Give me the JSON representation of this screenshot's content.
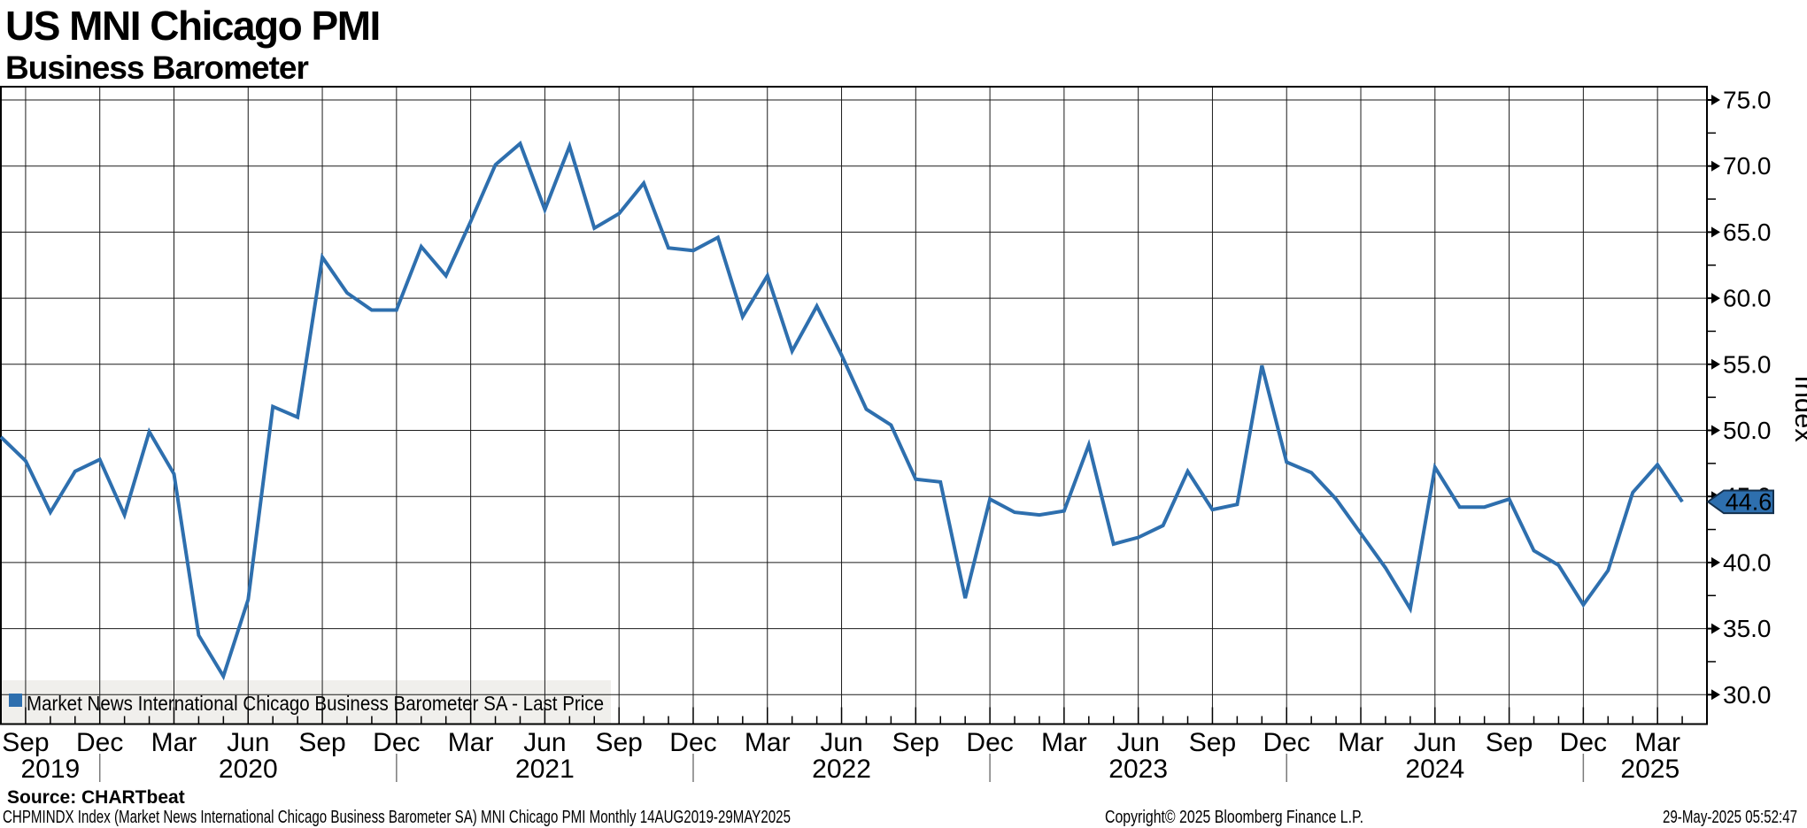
{
  "header": {
    "title": "US MNI Chicago PMI",
    "subtitle": "Business Barometer"
  },
  "chart_data": {
    "type": "line",
    "title": "US MNI Chicago PMI",
    "subtitle": "Business Barometer",
    "series_name": "Market News International Chicago Business Barometer SA - Last Price",
    "line_color": "#2e6fae",
    "grid": true,
    "legend_position": "bottom-left",
    "ylabel": "Index",
    "ylim": [
      28,
      76
    ],
    "x": [
      "Aug 2019",
      "Sep 2019",
      "Oct 2019",
      "Nov 2019",
      "Dec 2019",
      "Jan 2020",
      "Feb 2020",
      "Mar 2020",
      "Apr 2020",
      "May 2020",
      "Jun 2020",
      "Jul 2020",
      "Aug 2020",
      "Sep 2020",
      "Oct 2020",
      "Nov 2020",
      "Dec 2020",
      "Jan 2021",
      "Feb 2021",
      "Mar 2021",
      "Apr 2021",
      "May 2021",
      "Jun 2021",
      "Jul 2021",
      "Aug 2021",
      "Sep 2021",
      "Oct 2021",
      "Nov 2021",
      "Dec 2021",
      "Jan 2022",
      "Feb 2022",
      "Mar 2022",
      "Apr 2022",
      "May 2022",
      "Jun 2022",
      "Jul 2022",
      "Aug 2022",
      "Sep 2022",
      "Oct 2022",
      "Nov 2022",
      "Dec 2022",
      "Jan 2023",
      "Feb 2023",
      "Mar 2023",
      "Apr 2023",
      "May 2023",
      "Jun 2023",
      "Jul 2023",
      "Aug 2023",
      "Sep 2023",
      "Oct 2023",
      "Nov 2023",
      "Dec 2023",
      "Jan 2024",
      "Feb 2024",
      "Mar 2024",
      "Apr 2024",
      "May 2024",
      "Jun 2024",
      "Jul 2024",
      "Aug 2024",
      "Sep 2024",
      "Oct 2024",
      "Nov 2024",
      "Dec 2024",
      "Jan 2025",
      "Feb 2025",
      "Mar 2025",
      "Apr 2025"
    ],
    "values": [
      49.5,
      47.7,
      43.8,
      46.9,
      47.8,
      43.6,
      49.9,
      46.7,
      34.5,
      31.4,
      37.2,
      51.8,
      51.0,
      63.1,
      60.4,
      59.1,
      59.1,
      63.9,
      61.7,
      65.8,
      70.1,
      71.7,
      66.7,
      71.5,
      65.3,
      66.4,
      68.7,
      63.8,
      63.6,
      64.6,
      58.6,
      61.7,
      56.0,
      59.4,
      55.7,
      51.6,
      50.4,
      46.3,
      46.1,
      37.3,
      44.8,
      43.8,
      43.6,
      43.9,
      48.9,
      41.4,
      41.9,
      42.8,
      46.9,
      44.0,
      44.4,
      54.9,
      47.6,
      46.8,
      44.8,
      42.2,
      39.6,
      36.5,
      47.2,
      44.2,
      44.2,
      44.8,
      40.9,
      39.8,
      36.8,
      39.4,
      45.3,
      47.4,
      44.6
    ],
    "last_price": 44.6,
    "last_price_label": "44.6",
    "y_major_ticks": [
      75.0,
      70.0,
      65.0,
      60.0,
      55.0,
      50.0,
      45.0,
      40.0,
      35.0,
      30.0
    ],
    "y_major_tick_labels": [
      "75.0",
      "70.0",
      "65.0",
      "60.0",
      "55.0",
      "50.0",
      "45.0",
      "40.0",
      "35.0",
      "30.0"
    ],
    "y_minor_ticks": [
      72.5,
      67.5,
      62.5,
      57.5,
      52.5,
      47.5,
      42.5,
      37.5,
      32.5
    ],
    "x_quarter_ticks": [
      {
        "i": 1,
        "label": "Sep"
      },
      {
        "i": 4,
        "label": "Dec"
      },
      {
        "i": 7,
        "label": "Mar"
      },
      {
        "i": 10,
        "label": "Jun"
      },
      {
        "i": 13,
        "label": "Sep"
      },
      {
        "i": 16,
        "label": "Dec"
      },
      {
        "i": 19,
        "label": "Mar"
      },
      {
        "i": 22,
        "label": "Jun"
      },
      {
        "i": 25,
        "label": "Sep"
      },
      {
        "i": 28,
        "label": "Dec"
      },
      {
        "i": 31,
        "label": "Mar"
      },
      {
        "i": 34,
        "label": "Jun"
      },
      {
        "i": 37,
        "label": "Sep"
      },
      {
        "i": 40,
        "label": "Dec"
      },
      {
        "i": 43,
        "label": "Mar"
      },
      {
        "i": 46,
        "label": "Jun"
      },
      {
        "i": 49,
        "label": "Sep"
      },
      {
        "i": 52,
        "label": "Dec"
      },
      {
        "i": 55,
        "label": "Mar"
      },
      {
        "i": 58,
        "label": "Jun"
      },
      {
        "i": 61,
        "label": "Sep"
      },
      {
        "i": 64,
        "label": "Dec"
      },
      {
        "i": 67,
        "label": "Mar"
      }
    ],
    "year_labels": [
      {
        "label": "2019",
        "i": 2.0
      },
      {
        "label": "2020",
        "i": 10
      },
      {
        "label": "2021",
        "i": 22
      },
      {
        "label": "2022",
        "i": 34
      },
      {
        "label": "2023",
        "i": 46
      },
      {
        "label": "2024",
        "i": 58
      },
      {
        "label": "2025",
        "i": 66.7
      }
    ],
    "year_separator_i": [
      4,
      16,
      28,
      40,
      52,
      64
    ]
  },
  "legend": {
    "label": "Market News International Chicago Business Barometer SA - Last Price",
    "marker_color": "#2e6fae"
  },
  "y_axis": {
    "title": "Index"
  },
  "badge": {
    "label": "44.6",
    "fill": "#2e6fae",
    "border": "#14304d",
    "text_color": "#ffffff"
  },
  "footer": {
    "source": "Source: CHARTbeat",
    "description": "CHPMINDX Index (Market News International Chicago Business Barometer SA) MNI Chicago PMI  Monthly 14AUG2019-29MAY2025",
    "copyright": "Copyright© 2025 Bloomberg Finance L.P.",
    "timestamp": "29-May-2025 05:52:47"
  }
}
